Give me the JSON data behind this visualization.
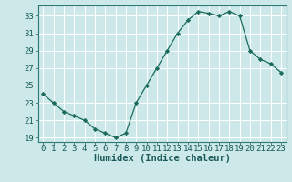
{
  "x": [
    0,
    1,
    2,
    3,
    4,
    5,
    6,
    7,
    8,
    9,
    10,
    11,
    12,
    13,
    14,
    15,
    16,
    17,
    18,
    19,
    20,
    21,
    22,
    23
  ],
  "y": [
    24.0,
    23.0,
    22.0,
    21.5,
    21.0,
    20.0,
    19.5,
    19.0,
    19.5,
    23.0,
    25.0,
    27.0,
    29.0,
    31.0,
    32.5,
    33.5,
    33.3,
    33.0,
    33.5,
    33.0,
    29.0,
    28.0,
    27.5,
    26.5
  ],
  "line_color": "#1a6b5a",
  "marker_color": "#1a6b5a",
  "bg_color": "#cce8e8",
  "grid_color": "#ffffff",
  "xlabel": "Humidex (Indice chaleur)",
  "ylim": [
    18.5,
    34.2
  ],
  "xlim": [
    -0.5,
    23.5
  ],
  "yticks": [
    19,
    21,
    23,
    25,
    27,
    29,
    31,
    33
  ],
  "xticks": [
    0,
    1,
    2,
    3,
    4,
    5,
    6,
    7,
    8,
    9,
    10,
    11,
    12,
    13,
    14,
    15,
    16,
    17,
    18,
    19,
    20,
    21,
    22,
    23
  ],
  "xlabel_fontsize": 7.5,
  "tick_fontsize": 6.5
}
